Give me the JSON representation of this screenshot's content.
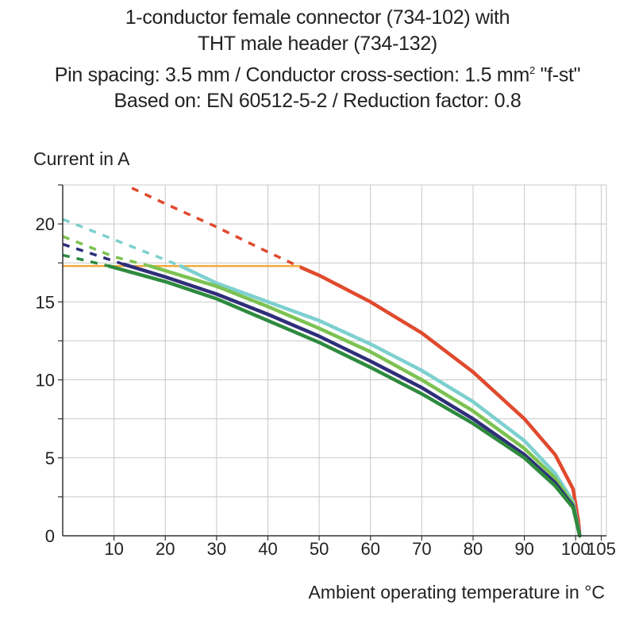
{
  "chart_data": {
    "type": "line",
    "title_lines": [
      "1-conductor female connector (734-102) with",
      "THT male header (734-132)",
      "Pin spacing: 3.5 mm / Conductor cross-section: 1.5 mm² \"f-st\"",
      "Based on: EN 60512-5-2 / Reduction factor: 0.8"
    ],
    "ylabel": "Current in A",
    "xlabel": "Ambient operating temperature in °C",
    "xlim": [
      0,
      106
    ],
    "ylim": [
      0,
      22.5
    ],
    "x_ticks": [
      10,
      20,
      30,
      40,
      50,
      60,
      70,
      80,
      90,
      100,
      105
    ],
    "y_ticks": [
      0,
      5,
      10,
      15,
      20
    ],
    "grid": true,
    "series": [
      {
        "color": "#e04a2e",
        "dashed_points": [
          [
            13.5,
            22.3
          ],
          [
            20,
            21.3
          ],
          [
            30,
            19.8
          ],
          [
            40,
            18.2
          ],
          [
            46.5,
            17.2
          ]
        ],
        "solid_points": [
          [
            46.5,
            17.2
          ],
          [
            50,
            16.7
          ],
          [
            60,
            15.0
          ],
          [
            70,
            13.0
          ],
          [
            80,
            10.5
          ],
          [
            90,
            7.5
          ],
          [
            96,
            5.2
          ],
          [
            99.5,
            3.0
          ],
          [
            100.5,
            1.0
          ],
          [
            100.8,
            0
          ]
        ]
      },
      {
        "color": "#7dd0cf",
        "dashed_points": [
          [
            0,
            20.3
          ],
          [
            10,
            19.0
          ],
          [
            20,
            17.7
          ],
          [
            23,
            17.3
          ]
        ],
        "solid_points": [
          [
            23,
            17.3
          ],
          [
            30,
            16.2
          ],
          [
            40,
            15.0
          ],
          [
            50,
            13.8
          ],
          [
            60,
            12.3
          ],
          [
            70,
            10.6
          ],
          [
            80,
            8.6
          ],
          [
            90,
            6.1
          ],
          [
            96,
            4.0
          ],
          [
            99.5,
            2.2
          ],
          [
            100.8,
            0
          ]
        ]
      },
      {
        "color": "#7cc251",
        "dashed_points": [
          [
            0,
            19.2
          ],
          [
            10,
            17.9
          ],
          [
            17,
            17.3
          ]
        ],
        "solid_points": [
          [
            17,
            17.3
          ],
          [
            20,
            17.0
          ],
          [
            30,
            16.0
          ],
          [
            40,
            14.7
          ],
          [
            50,
            13.3
          ],
          [
            60,
            11.8
          ],
          [
            70,
            10.0
          ],
          [
            80,
            8.0
          ],
          [
            90,
            5.6
          ],
          [
            96,
            3.7
          ],
          [
            99.5,
            2.0
          ],
          [
            100.8,
            0
          ]
        ]
      },
      {
        "color": "#2e2e7a",
        "dashed_points": [
          [
            0,
            18.7
          ],
          [
            12,
            17.4
          ]
        ],
        "solid_points": [
          [
            12,
            17.4
          ],
          [
            20,
            16.6
          ],
          [
            30,
            15.5
          ],
          [
            40,
            14.2
          ],
          [
            50,
            12.8
          ],
          [
            60,
            11.2
          ],
          [
            70,
            9.5
          ],
          [
            80,
            7.5
          ],
          [
            90,
            5.2
          ],
          [
            96,
            3.4
          ],
          [
            99.5,
            1.9
          ],
          [
            100.8,
            0
          ]
        ]
      },
      {
        "color": "#2e8a3e",
        "dashed_points": [
          [
            0,
            18.0
          ],
          [
            9,
            17.3
          ]
        ],
        "solid_points": [
          [
            9,
            17.3
          ],
          [
            20,
            16.3
          ],
          [
            30,
            15.2
          ],
          [
            40,
            13.8
          ],
          [
            50,
            12.4
          ],
          [
            60,
            10.8
          ],
          [
            70,
            9.1
          ],
          [
            80,
            7.2
          ],
          [
            90,
            5.0
          ],
          [
            96,
            3.2
          ],
          [
            99.5,
            1.8
          ],
          [
            100.8,
            0
          ]
        ]
      }
    ],
    "limit_line": {
      "color": "#f2a93b",
      "y": 17.3,
      "x_start": 0,
      "x_end": 46.5
    }
  }
}
